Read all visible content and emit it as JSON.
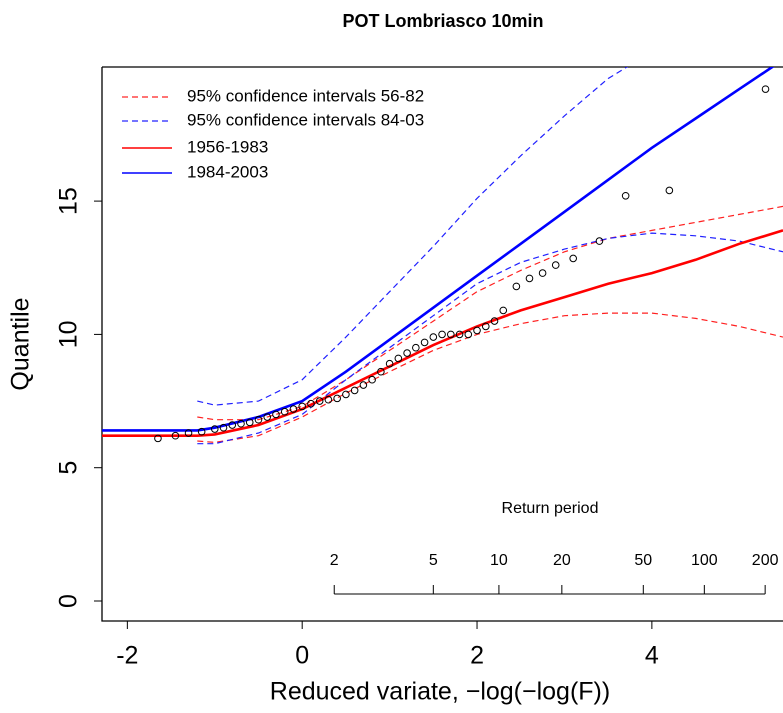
{
  "chart_data": {
    "type": "line",
    "title": "POT Lombriasco 10min",
    "xlabel": "Reduced variate,  −log(−log(F))",
    "ylabel": "Quantile",
    "xlim": [
      -2.29,
      5.5
    ],
    "xticks": [
      -2,
      0,
      2,
      4
    ],
    "ylim": [
      -0.75,
      20.03
    ],
    "yticks": [
      0,
      5,
      10,
      15
    ],
    "legend": "top-left",
    "return_period": {
      "label": "Return period",
      "ticks": [
        2,
        5,
        10,
        20,
        50,
        100,
        200
      ]
    },
    "series": [
      {
        "name": "95% confidence intervals 56-82",
        "color": "#ff2020",
        "style": "dashed",
        "x": [
          -1.2,
          -1,
          -0.5,
          0,
          0.5,
          1,
          1.5,
          2,
          2.5,
          3,
          3.5,
          4,
          4.5,
          5,
          5.5
        ],
        "y": [
          6.9,
          6.8,
          6.8,
          7.3,
          8.3,
          9.4,
          10.5,
          11.6,
          12.4,
          13.1,
          13.6,
          13.9,
          14.2,
          14.5,
          14.8
        ]
      },
      {
        "color": "#ff2020",
        "style": "dashed",
        "x": [
          -1.2,
          -1,
          -0.5,
          0,
          0.5,
          1,
          1.5,
          2,
          2.5,
          3,
          3.5,
          4,
          4.5,
          5,
          5.5
        ],
        "y": [
          6.0,
          5.95,
          6.2,
          6.9,
          7.8,
          8.6,
          9.4,
          10.0,
          10.4,
          10.7,
          10.8,
          10.8,
          10.6,
          10.3,
          9.9
        ]
      },
      {
        "name": "95% confidence intervals 84-03",
        "color": "#2020ff",
        "style": "dashed",
        "x": [
          -1.2,
          -1,
          -0.5,
          0,
          0.5,
          1,
          1.5,
          2,
          2.5,
          3,
          3.5,
          3.8
        ],
        "y": [
          7.5,
          7.35,
          7.5,
          8.3,
          9.9,
          11.6,
          13.3,
          15.1,
          16.7,
          18.2,
          19.6,
          20.2
        ]
      },
      {
        "color": "#2020ff",
        "style": "dashed",
        "x": [
          -1.2,
          -1,
          -0.5,
          0,
          0.5,
          1,
          1.5,
          2,
          2.5,
          3,
          3.5,
          4,
          4.5,
          5,
          5.5
        ],
        "y": [
          5.9,
          5.9,
          6.3,
          7.0,
          8.3,
          9.5,
          10.7,
          11.9,
          12.7,
          13.2,
          13.6,
          13.8,
          13.7,
          13.5,
          13.1
        ]
      },
      {
        "name": "1956-1983",
        "color": "#ff0000",
        "style": "solid",
        "x": [
          -2.29,
          -1.2,
          -1,
          -0.5,
          0,
          0.5,
          1,
          1.5,
          2,
          2.5,
          3,
          3.5,
          4,
          4.5,
          5,
          5.5
        ],
        "y": [
          6.2,
          6.2,
          6.25,
          6.6,
          7.2,
          8.0,
          8.8,
          9.6,
          10.3,
          10.9,
          11.4,
          11.9,
          12.3,
          12.8,
          13.4,
          13.9
        ]
      },
      {
        "name": "1984-2003",
        "color": "#0000ff",
        "style": "solid",
        "x": [
          -2.29,
          -1.2,
          -1,
          -0.5,
          0,
          0.5,
          1,
          1.5,
          2,
          2.5,
          3,
          3.5,
          4,
          4.5,
          5,
          5.5
        ],
        "y": [
          6.4,
          6.4,
          6.5,
          6.9,
          7.5,
          8.6,
          9.8,
          11.0,
          12.2,
          13.4,
          14.6,
          15.8,
          17.0,
          18.1,
          19.2,
          20.3
        ]
      },
      {
        "color": "#000000",
        "style": "points",
        "x": [
          -1.65,
          -1.45,
          -1.3,
          -1.15,
          -1.0,
          -0.9,
          -0.8,
          -0.7,
          -0.6,
          -0.5,
          -0.4,
          -0.3,
          -0.2,
          -0.1,
          0,
          0.1,
          0.2,
          0.3,
          0.4,
          0.5,
          0.6,
          0.7,
          0.8,
          0.9,
          1.0,
          1.1,
          1.2,
          1.3,
          1.4,
          1.5,
          1.6,
          1.7,
          1.8,
          1.9,
          2.0,
          2.1,
          2.2,
          2.3,
          2.45,
          2.6,
          2.75,
          2.9,
          3.1,
          3.4,
          3.7,
          4.2,
          5.3
        ],
        "y": [
          6.1,
          6.2,
          6.3,
          6.35,
          6.45,
          6.5,
          6.6,
          6.65,
          6.7,
          6.8,
          6.9,
          7.0,
          7.1,
          7.2,
          7.3,
          7.4,
          7.5,
          7.55,
          7.6,
          7.75,
          7.9,
          8.1,
          8.3,
          8.6,
          8.9,
          9.1,
          9.3,
          9.5,
          9.7,
          9.9,
          10.0,
          10.0,
          10.0,
          10.0,
          10.15,
          10.3,
          10.5,
          10.9,
          11.8,
          12.1,
          12.3,
          12.6,
          12.85,
          13.5,
          15.2,
          15.4,
          19.2
        ]
      }
    ]
  }
}
